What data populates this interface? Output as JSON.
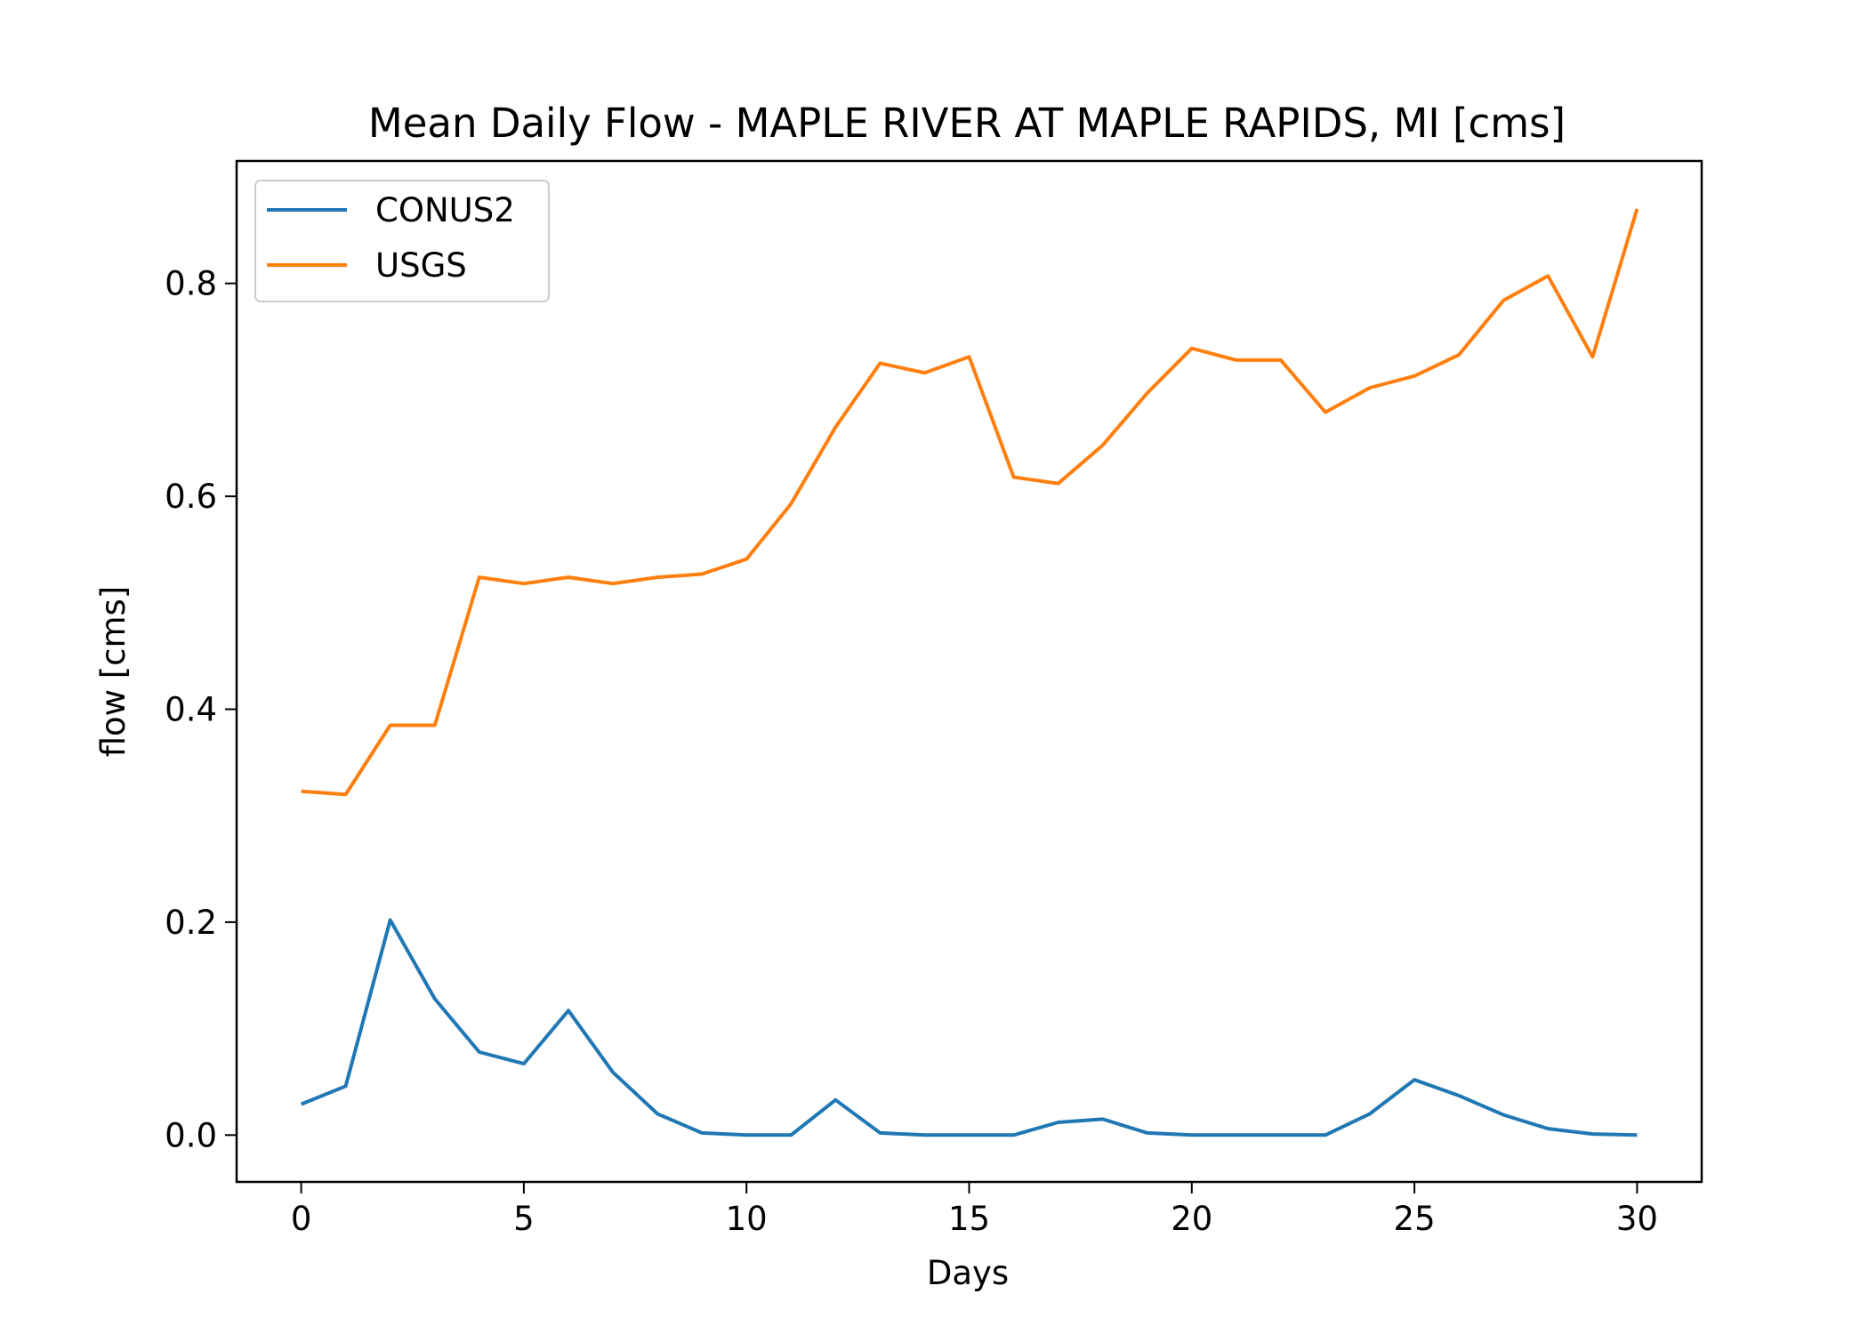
{
  "chart_data": {
    "type": "line",
    "title": "Mean Daily Flow - MAPLE RIVER AT MAPLE RAPIDS, MI [cms]",
    "xlabel": "Days",
    "ylabel": "flow [cms]",
    "xlim": [
      -1.45,
      31.45
    ],
    "ylim": [
      -0.044,
      0.915
    ],
    "xticks": [
      0,
      5,
      10,
      15,
      20,
      25,
      30
    ],
    "xtick_labels": [
      "0",
      "5",
      "10",
      "15",
      "20",
      "25",
      "30"
    ],
    "yticks": [
      0.0,
      0.2,
      0.4,
      0.6,
      0.8
    ],
    "ytick_labels": [
      "0.0",
      "0.2",
      "0.4",
      "0.6",
      "0.8"
    ],
    "grid": false,
    "legend_position": "top-left",
    "x": [
      0,
      1,
      2,
      3,
      4,
      5,
      6,
      7,
      8,
      9,
      10,
      11,
      12,
      13,
      14,
      15,
      16,
      17,
      18,
      19,
      20,
      21,
      22,
      23,
      24,
      25,
      26,
      27,
      28,
      29,
      30
    ],
    "series": [
      {
        "name": "CONUS2",
        "color": "#1f77b4",
        "values": [
          0.029,
          0.046,
          0.202,
          0.128,
          0.078,
          0.067,
          0.117,
          0.059,
          0.02,
          0.002,
          0.0,
          0.0,
          0.033,
          0.002,
          0.0,
          0.0,
          0.0,
          0.012,
          0.015,
          0.002,
          0.0,
          0.0,
          0.0,
          0.0,
          0.02,
          0.052,
          0.037,
          0.019,
          0.006,
          0.001,
          0.0
        ]
      },
      {
        "name": "USGS",
        "color": "#ff7f0e",
        "values": [
          0.323,
          0.32,
          0.385,
          0.385,
          0.524,
          0.518,
          0.524,
          0.518,
          0.524,
          0.527,
          0.541,
          0.593,
          0.665,
          0.725,
          0.716,
          0.731,
          0.618,
          0.612,
          0.648,
          0.697,
          0.739,
          0.728,
          0.728,
          0.679,
          0.702,
          0.713,
          0.733,
          0.784,
          0.807,
          0.731,
          0.87
        ]
      }
    ]
  }
}
